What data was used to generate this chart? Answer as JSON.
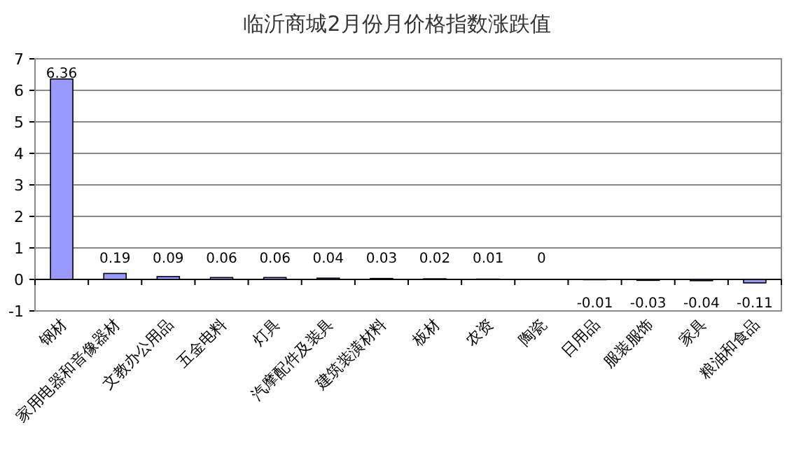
{
  "chart_data": {
    "type": "bar",
    "title": "临沂商城2月份月价格指数涨跌值",
    "categories": [
      "钢材",
      "家用电器和音像器材",
      "文教办公用品",
      "五金电料",
      "灯具",
      "汽摩配件及装具",
      "建筑装潢材料",
      "板材",
      "农资",
      "陶瓷",
      "日用品",
      "服装服饰",
      "家具",
      "粮油和食品"
    ],
    "values": [
      6.36,
      0.19,
      0.09,
      0.06,
      0.06,
      0.04,
      0.03,
      0.02,
      0.01,
      0,
      -0.01,
      -0.03,
      -0.04,
      -0.11
    ],
    "color": "#9999ff",
    "ylim": [
      -1,
      7
    ],
    "yticks": [
      -1,
      0,
      1,
      2,
      3,
      4,
      5,
      6,
      7
    ],
    "grid": "y",
    "data_labels": true
  }
}
